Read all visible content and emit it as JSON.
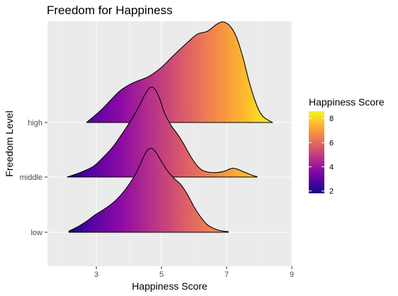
{
  "chart_data": {
    "type": "ridgeline",
    "title": "Freedom for Happiness",
    "xlabel": "Happiness Score",
    "ylabel": "Freedom Level",
    "xlim": [
      1.5,
      9
    ],
    "x_ticks": [
      3,
      5,
      7,
      9
    ],
    "categories": [
      "low",
      "middle",
      "high"
    ],
    "colormap": "plasma",
    "color_scale_range": [
      1.8,
      8.6
    ],
    "legend": {
      "title": "Happiness Score",
      "ticks": [
        2,
        4,
        6,
        8
      ],
      "placement": "right"
    },
    "series": [
      {
        "name": "low",
        "x": [
          2.15,
          2.4,
          2.7,
          3.0,
          3.3,
          3.6,
          3.9,
          4.2,
          4.4,
          4.55,
          4.7,
          4.85,
          5.0,
          5.2,
          5.4,
          5.6,
          5.8,
          6.0,
          6.2,
          6.4,
          6.6,
          6.8,
          7.05
        ],
        "density": [
          0.02,
          0.09,
          0.2,
          0.33,
          0.44,
          0.58,
          0.78,
          1.05,
          1.3,
          1.47,
          1.52,
          1.43,
          1.28,
          1.1,
          0.97,
          0.86,
          0.68,
          0.46,
          0.28,
          0.14,
          0.07,
          0.03,
          0.01
        ]
      },
      {
        "name": "middle",
        "x": [
          2.1,
          2.5,
          2.9,
          3.2,
          3.5,
          3.8,
          4.1,
          4.3,
          4.5,
          4.65,
          4.8,
          4.95,
          5.1,
          5.3,
          5.5,
          5.7,
          5.9,
          6.1,
          6.3,
          6.6,
          6.9,
          7.2,
          7.5,
          7.75,
          7.95
        ],
        "density": [
          0.0,
          0.08,
          0.19,
          0.35,
          0.54,
          0.79,
          1.06,
          1.27,
          1.5,
          1.62,
          1.59,
          1.41,
          1.15,
          0.93,
          0.77,
          0.58,
          0.37,
          0.2,
          0.11,
          0.08,
          0.1,
          0.16,
          0.1,
          0.04,
          0.0
        ]
      },
      {
        "name": "high",
        "x": [
          2.7,
          3.1,
          3.4,
          3.7,
          4.0,
          4.3,
          4.6,
          5.0,
          5.4,
          5.8,
          6.1,
          6.4,
          6.7,
          6.9,
          7.1,
          7.3,
          7.5,
          7.7,
          7.9,
          8.1,
          8.4
        ],
        "density": [
          0.0,
          0.2,
          0.38,
          0.56,
          0.68,
          0.76,
          0.83,
          1.0,
          1.23,
          1.45,
          1.6,
          1.65,
          1.78,
          1.82,
          1.75,
          1.55,
          1.18,
          0.72,
          0.35,
          0.12,
          0.0
        ]
      }
    ]
  }
}
